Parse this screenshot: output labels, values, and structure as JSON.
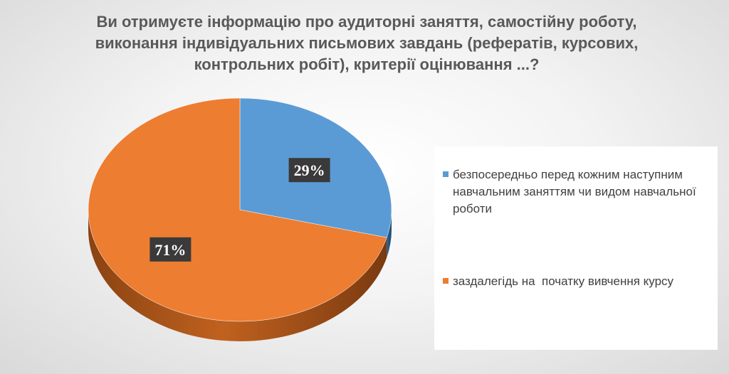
{
  "chart_data": {
    "type": "pie",
    "title": "Ви отримуєте інформацію про аудиторні заняття, самостійну роботу, виконання індивідуальних письмових завдань (рефератів, курсових, контрольних робіт), критерії оцінювання ...?",
    "slices": [
      {
        "label": "безпосередньо перед кожним наступним навчальним заняттям чи видом навчальної роботи",
        "value": 29,
        "display": "29%",
        "color": "#5B9BD5"
      },
      {
        "label": "заздалегідь на  початку вивчення курсу",
        "value": 71,
        "display": "71%",
        "color": "#ED7D31"
      }
    ],
    "legend_position": "right",
    "style": "3d"
  }
}
